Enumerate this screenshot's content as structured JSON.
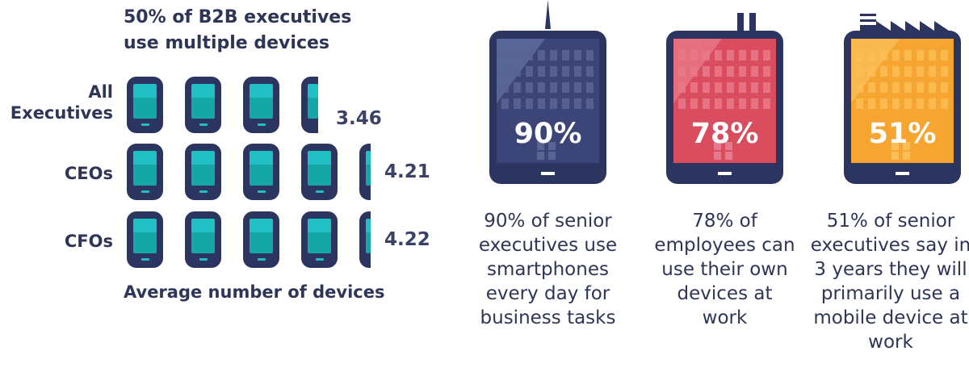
{
  "title": "50% of B2B executives use multiple devices",
  "footer": "Average number of devices",
  "chart_data": {
    "type": "bar",
    "title": "50% of B2B executives use multiple devices",
    "xlabel": "Average number of devices",
    "categories": [
      "All Executives",
      "CEOs",
      "CFOs"
    ],
    "values": [
      3.46,
      4.21,
      4.22
    ],
    "value_labels": [
      "3.46",
      "4.21",
      "4.22"
    ]
  },
  "rows": [
    {
      "label": "All Executives",
      "value": "3.46"
    },
    {
      "label": "CEOs",
      "value": "4.21"
    },
    {
      "label": "CFOs",
      "value": "4.22"
    }
  ],
  "stats": [
    {
      "percent": "90%",
      "fraction": 0.9,
      "caption": "90% of senior executives use smartphones every day for business tasks",
      "color": "#3c4577"
    },
    {
      "percent": "78%",
      "fraction": 0.78,
      "caption": "78% of employees can use their own devices at work",
      "color": "#d94d5f"
    },
    {
      "percent": "51%",
      "fraction": 0.51,
      "caption": "51% of senior executives say in 3 years they will primarily use a mobile device at work",
      "color": "#f7a531"
    }
  ],
  "colors": {
    "navy": "#2b3560",
    "teal_light": "#1fbfc4",
    "teal_dark": "#15a6a6",
    "text": "#2f3557"
  }
}
